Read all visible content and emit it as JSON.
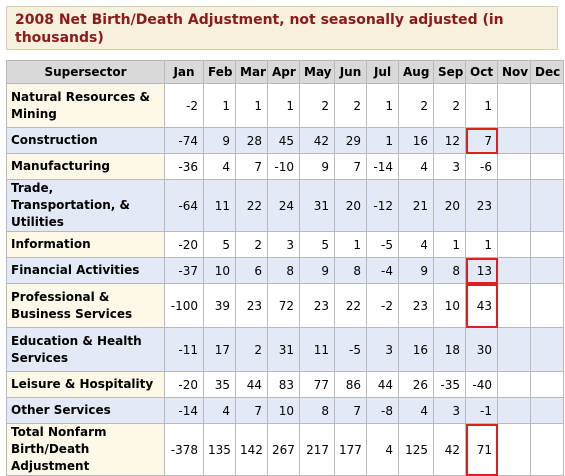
{
  "title": "2008 Net Birth/Death Adjustment, not seasonally adjusted (in thousands)",
  "header": {
    "sector": "Supersector",
    "months": [
      "Jan",
      "Feb",
      "Mar",
      "Apr",
      "May",
      "Jun",
      "Jul",
      "Aug",
      "Sep",
      "Oct",
      "Nov",
      "Dec"
    ]
  },
  "rows": [
    {
      "label": "Natural Resources & Mining",
      "values": [
        "-2",
        "1",
        "1",
        "1",
        "2",
        "2",
        "1",
        "2",
        "2",
        "1",
        "",
        ""
      ]
    },
    {
      "label": "Construction",
      "values": [
        "-74",
        "9",
        "28",
        "45",
        "42",
        "29",
        "1",
        "16",
        "12",
        "7",
        "",
        ""
      ]
    },
    {
      "label": "Manufacturing",
      "values": [
        "-36",
        "4",
        "7",
        "-10",
        "9",
        "7",
        "-14",
        "4",
        "3",
        "-6",
        "",
        ""
      ]
    },
    {
      "label": "Trade, Transportation, & Utilities",
      "values": [
        "-64",
        "11",
        "22",
        "24",
        "31",
        "20",
        "-12",
        "21",
        "20",
        "23",
        "",
        ""
      ]
    },
    {
      "label": "Information",
      "values": [
        "-20",
        "5",
        "2",
        "3",
        "5",
        "1",
        "-5",
        "4",
        "1",
        "1",
        "",
        ""
      ]
    },
    {
      "label": "Financial Activities",
      "values": [
        "-37",
        "10",
        "6",
        "8",
        "9",
        "8",
        "-4",
        "9",
        "8",
        "13",
        "",
        ""
      ]
    },
    {
      "label": "Professional & Business Services",
      "values": [
        "-100",
        "39",
        "23",
        "72",
        "23",
        "22",
        "-2",
        "23",
        "10",
        "43",
        "",
        ""
      ]
    },
    {
      "label": "Education & Health Services",
      "values": [
        "-11",
        "17",
        "2",
        "31",
        "11",
        "-5",
        "3",
        "16",
        "18",
        "30",
        "",
        ""
      ]
    },
    {
      "label": "Leisure & Hospitality",
      "values": [
        "-20",
        "35",
        "44",
        "83",
        "77",
        "86",
        "44",
        "26",
        "-35",
        "-40",
        "",
        ""
      ]
    },
    {
      "label": "Other Services",
      "values": [
        "-14",
        "4",
        "7",
        "10",
        "8",
        "7",
        "-8",
        "4",
        "3",
        "-1",
        "",
        ""
      ]
    },
    {
      "label": "Total Nonfarm Birth/Death Adjustment",
      "values": [
        "-378",
        "135",
        "142",
        "267",
        "217",
        "177",
        "4",
        "125",
        "42",
        "71",
        "",
        ""
      ]
    }
  ],
  "row_heights": [
    "h2",
    "h1",
    "h1",
    "h2",
    "h1",
    "h1",
    "h2",
    "h2",
    "h1",
    "h1",
    "h2"
  ],
  "row_styles": [
    "white",
    "blue",
    "white",
    "blue",
    "white",
    "blue",
    "white",
    "blue",
    "white",
    "blue",
    "white"
  ],
  "highlight_color": "#e02020",
  "highlighted_cells": [
    {
      "row": "Construction",
      "month": "Oct"
    },
    {
      "row": "Financial Activities",
      "month": "Oct"
    },
    {
      "row": "Professional & Business Services",
      "month": "Oct"
    },
    {
      "row": "Total Nonfarm Birth/Death Adjustment",
      "month": "Oct"
    }
  ]
}
